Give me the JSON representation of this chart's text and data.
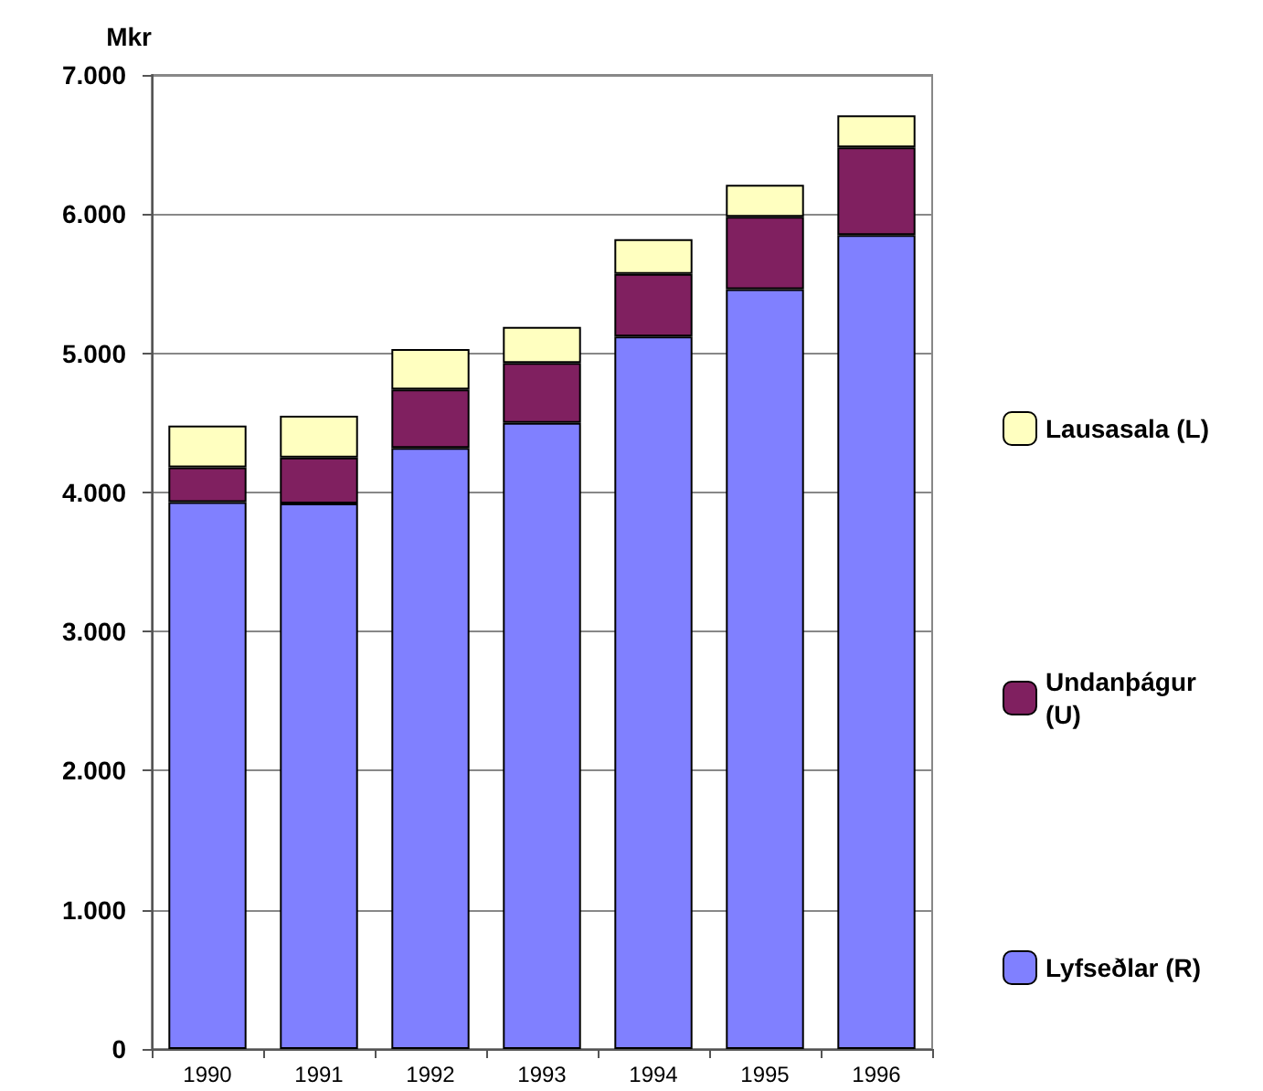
{
  "chart_data": {
    "type": "bar",
    "stacked": true,
    "ylabel": "Mkr",
    "categories": [
      "1990",
      "1991",
      "1992",
      "1993",
      "1994",
      "1995",
      "1996"
    ],
    "series": [
      {
        "name": "Lyfseðlar (R)",
        "color": "#8080ff",
        "values": [
          3930,
          3920,
          4320,
          4500,
          5120,
          5460,
          5850
        ]
      },
      {
        "name": "Undanþágur (U)",
        "color": "#802060",
        "values": [
          250,
          330,
          420,
          430,
          450,
          520,
          630
        ]
      },
      {
        "name": "Lausasala (L)",
        "color": "#ffffc0",
        "values": [
          300,
          300,
          290,
          260,
          250,
          230,
          230
        ]
      }
    ],
    "ylim": [
      0,
      7000
    ],
    "yticks": [
      {
        "value": 0,
        "label": "0"
      },
      {
        "value": 1000,
        "label": "1.000"
      },
      {
        "value": 2000,
        "label": "2.000"
      },
      {
        "value": 3000,
        "label": "3.000"
      },
      {
        "value": 4000,
        "label": "4.000"
      },
      {
        "value": 5000,
        "label": "5.000"
      },
      {
        "value": 6000,
        "label": "6.000"
      },
      {
        "value": 7000,
        "label": "7.000"
      }
    ],
    "grid": "y",
    "legend": "right"
  }
}
